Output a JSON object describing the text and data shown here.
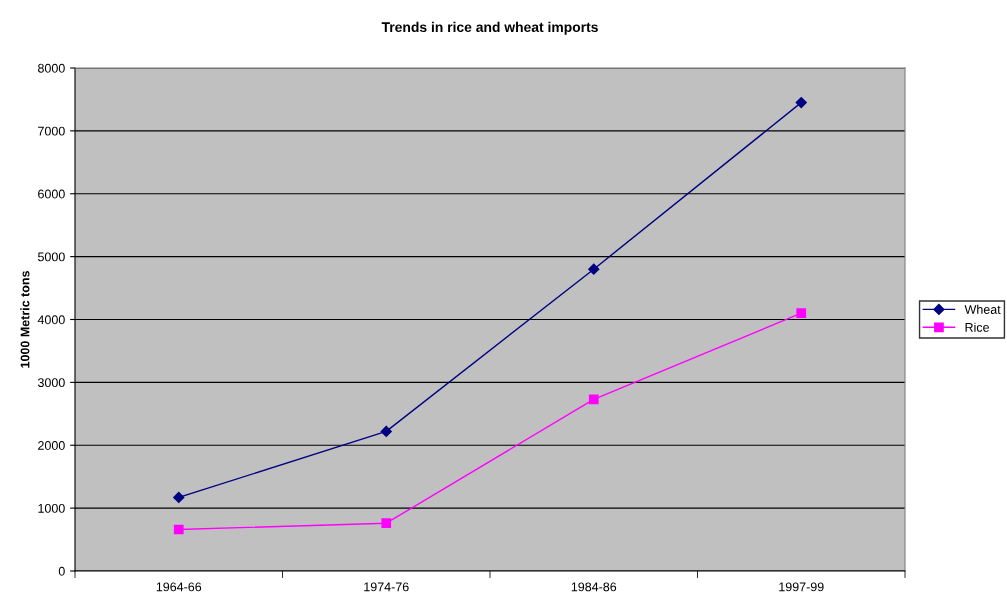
{
  "chart_data": {
    "type": "line",
    "title": "Trends in rice and wheat imports",
    "ylabel": "1000 Metric tons",
    "categories": [
      "1964-66",
      "1974-76",
      "1984-86",
      "1997-99"
    ],
    "series": [
      {
        "name": "Wheat",
        "color": "#000080",
        "marker": "diamond",
        "values": [
          1170,
          2220,
          4800,
          7450
        ]
      },
      {
        "name": "Rice",
        "color": "#ff00ff",
        "marker": "square",
        "values": [
          660,
          760,
          2730,
          4100
        ]
      }
    ],
    "ylim": [
      0,
      8000
    ],
    "yticks": [
      0,
      1000,
      2000,
      3000,
      4000,
      5000,
      6000,
      7000,
      8000
    ],
    "grid": "y",
    "legend": "right",
    "line_style": "solid"
  }
}
